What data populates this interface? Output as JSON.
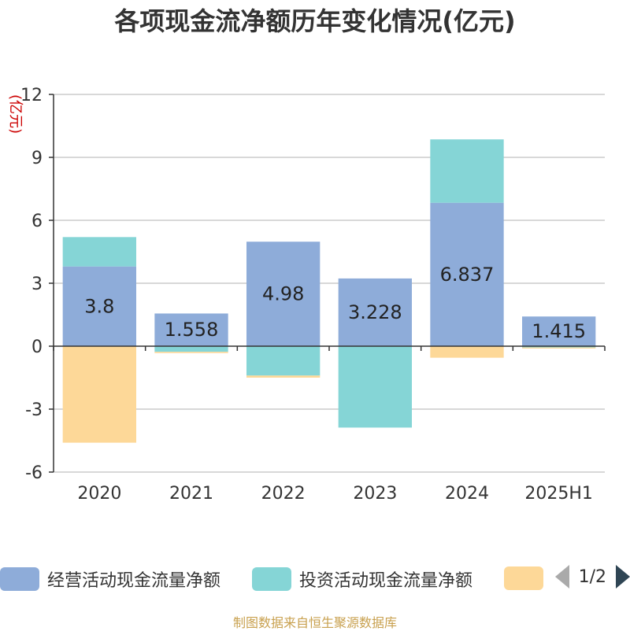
{
  "chart_data": {
    "type": "bar",
    "stacked": true,
    "title": "各项现金流净额历年变化情况(亿元)",
    "ylabel": "(亿元)",
    "xlabel": "",
    "categories": [
      "2020",
      "2021",
      "2022",
      "2023",
      "2024",
      "2025H1"
    ],
    "ylim": [
      -6,
      12
    ],
    "yticks": [
      12,
      9,
      6,
      3,
      0,
      -3,
      -6
    ],
    "grid": true,
    "series": [
      {
        "name": "经营活动现金流量净额",
        "color": "#8eacd9",
        "values": [
          3.8,
          1.558,
          4.98,
          3.228,
          6.837,
          1.415
        ],
        "show_labels": true
      },
      {
        "name": "投资活动现金流量净额",
        "color": "#85d5d6",
        "values": [
          1.4,
          -0.27,
          -1.4,
          -3.88,
          3.02,
          -0.06
        ],
        "show_labels": false
      },
      {
        "name": "",
        "color": "#fdd898",
        "values": [
          -4.6,
          -0.06,
          -0.1,
          0,
          -0.55,
          -0.05
        ],
        "show_labels": false
      }
    ],
    "legend_position": "bottom"
  },
  "legend": {
    "items": [
      {
        "label": "经营活动现金流量净额",
        "color": "#8eacd9"
      },
      {
        "label": "投资活动现金流量净额",
        "color": "#85d5d6"
      },
      {
        "label": "",
        "color": "#fdd898"
      }
    ],
    "page_indicator": "1/2"
  },
  "source_note": "制图数据来自恒生聚源数据库"
}
